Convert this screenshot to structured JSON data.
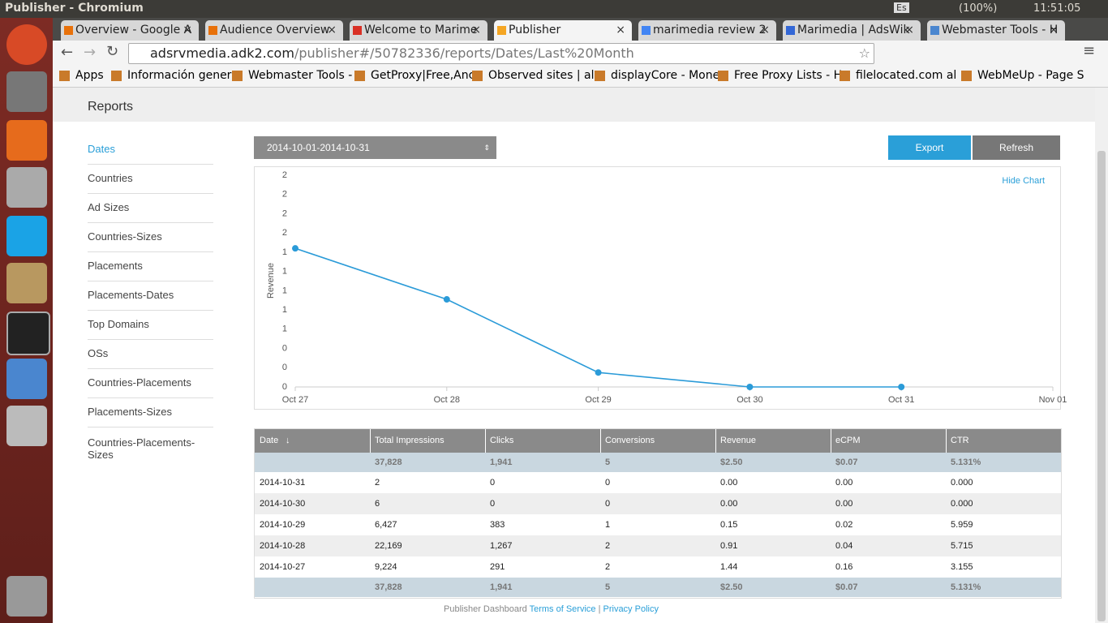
{
  "window_title": "Publisher - Chromium",
  "system_tray": {
    "keyboard": "Es",
    "battery": "(100%)",
    "clock": "11:51:05"
  },
  "tabs": [
    "Overview - Google A",
    "Audience Overview",
    "Welcome to Marime",
    "Publisher",
    "marimedia review 2",
    "Marimedia | AdsWik",
    "Webmaster Tools - H"
  ],
  "url_host": "adsrvmedia.adk2.com",
  "url_path": "/publisher#/50782336/reports/Dates/Last%20Month",
  "bookmarks": [
    "Apps",
    "Información gener",
    "Webmaster Tools -",
    "GetProxy|Free,Anc",
    "Observed sites | al",
    "displayCore - Mone",
    "Free Proxy Lists - H",
    "filelocated.com al",
    "WebMeUp - Page S"
  ],
  "page": {
    "heading": "Reports",
    "sidebar": [
      "Dates",
      "Countries",
      "Ad Sizes",
      "Countries-Sizes",
      "Placements",
      "Placements-Dates",
      "Top Domains",
      "OSs",
      "Countries-Placements",
      "Placements-Sizes",
      "Countries-Placements-Sizes"
    ],
    "date_range": "2014-10-01-2014-10-31",
    "export": "Export",
    "refresh": "Refresh",
    "hide_chart": "Hide Chart",
    "table": {
      "columns": [
        "Date",
        "Total Impressions",
        "Clicks",
        "Conversions",
        "Revenue",
        "eCPM",
        "CTR"
      ],
      "summary": [
        "",
        "37,828",
        "1,941",
        "5",
        "$2.50",
        "$0.07",
        "5.131%"
      ],
      "rows": [
        [
          "2014-10-31",
          "2",
          "0",
          "0",
          "0.00",
          "0.00",
          "0.000"
        ],
        [
          "2014-10-30",
          "6",
          "0",
          "0",
          "0.00",
          "0.00",
          "0.000"
        ],
        [
          "2014-10-29",
          "6,427",
          "383",
          "1",
          "0.15",
          "0.02",
          "5.959"
        ],
        [
          "2014-10-28",
          "22,169",
          "1,267",
          "2",
          "0.91",
          "0.04",
          "5.715"
        ],
        [
          "2014-10-27",
          "9,224",
          "291",
          "2",
          "1.44",
          "0.16",
          "3.155"
        ]
      ],
      "totals": [
        "",
        "37,828",
        "1,941",
        "5",
        "$2.50",
        "$0.07",
        "5.131%"
      ]
    },
    "footer": {
      "text": "Publisher Dashboard",
      "terms": "Terms of Service",
      "separator": "|",
      "privacy": "Privacy Policy"
    }
  },
  "chart_data": {
    "type": "line",
    "y_label": "Revenue",
    "categories": [
      "Oct 27",
      "Oct 28",
      "Oct 29",
      "Oct 30",
      "Oct 31",
      "Nov 01"
    ],
    "values": [
      1.44,
      0.91,
      0.15,
      0,
      0,
      null
    ],
    "color": "#2b9bd8",
    "ylim": [
      0,
      2.2
    ],
    "yticks": [
      0,
      {
        "value": 0.2,
        "label": "0"
      },
      {
        "value": 0.4,
        "label": "0"
      },
      {
        "value": 0.6,
        "label": "1"
      },
      {
        "value": 0.8,
        "label": "1"
      },
      1,
      {
        "value": 1.2,
        "label": "1"
      },
      {
        "value": 1.4,
        "label": "1"
      },
      {
        "value": 1.6,
        "label": "2"
      },
      {
        "value": 1.8,
        "label": "2"
      },
      2,
      {
        "value": 2.2,
        "label": "2"
      }
    ],
    "grid": false
  }
}
